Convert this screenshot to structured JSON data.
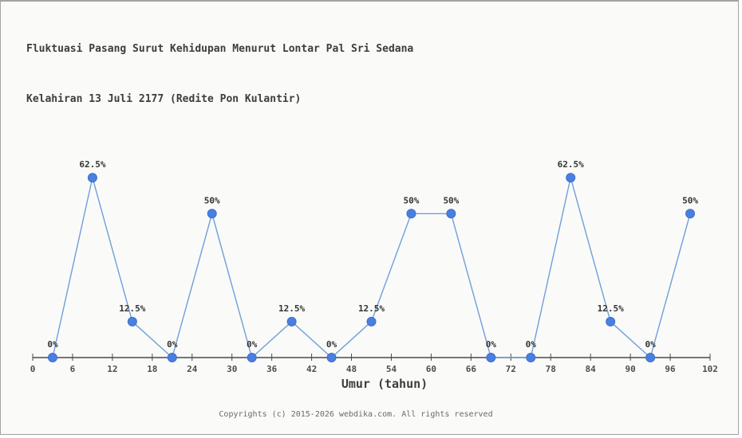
{
  "window": {
    "background": "#fafaf8",
    "border_color": "#a3a3a3"
  },
  "chart_data": {
    "type": "line",
    "title_line1": "Fluktuasi Pasang Surut Kehidupan Menurut Lontar Pal Sri Sedana",
    "title_line2": "Kelahiran 13 Juli 2177 (Redite Pon Kulantir)",
    "xlabel": "Umur (tahun)",
    "x": [
      3,
      9,
      15,
      21,
      27,
      33,
      39,
      45,
      51,
      57,
      63,
      69,
      75,
      81,
      87,
      93,
      99
    ],
    "values": [
      0,
      62.5,
      12.5,
      0,
      50,
      0,
      12.5,
      0,
      12.5,
      50,
      50,
      0,
      0,
      62.5,
      12.5,
      0,
      50
    ],
    "point_labels": [
      "0%",
      "62.5%",
      "12.5%",
      "0%",
      "50%",
      "0%",
      "12.5%",
      "0%",
      "12.5%",
      "50%",
      "50%",
      "0%",
      "0%",
      "62.5%",
      "12.5%",
      "0%",
      "50%"
    ],
    "x_ticks": [
      0,
      6,
      12,
      18,
      24,
      30,
      36,
      42,
      48,
      54,
      60,
      66,
      72,
      78,
      84,
      90,
      96,
      102
    ],
    "xlim": [
      0,
      102
    ],
    "ylim": [
      0,
      70
    ],
    "grid": false,
    "legend": null,
    "colors": {
      "line": "#6f9fd8",
      "marker_fill": "#4a7fe0",
      "marker_stroke": "#3d6fce",
      "axis": "#4a4a4a",
      "tick_label": "#4d4d4d",
      "point_label": "#333333"
    }
  },
  "footer": {
    "copyright": "Copyrights (c) 2015-2026 webdika.com. All rights reserved"
  }
}
